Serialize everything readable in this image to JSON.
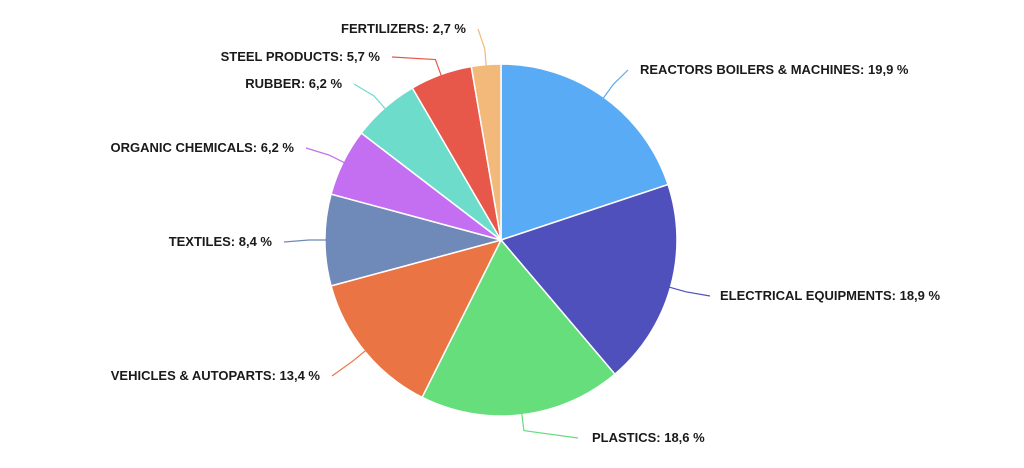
{
  "chart_data": {
    "type": "pie",
    "title": "",
    "slices": [
      {
        "label": "REACTORS BOILERS & MACHINES: 19,9 %",
        "value": 19.9,
        "color": "#5aabf5"
      },
      {
        "label": "ELECTRICAL EQUIPMENTS: 18,9 %",
        "value": 18.9,
        "color": "#5050bd"
      },
      {
        "label": "PLASTICS: 18,6 %",
        "value": 18.6,
        "color": "#66de7c"
      },
      {
        "label": "VEHICLES & AUTOPARTS: 13,4 %",
        "value": 13.4,
        "color": "#eb7444"
      },
      {
        "label": "TEXTILES: 8,4 %",
        "value": 8.4,
        "color": "#6f89b8"
      },
      {
        "label": "ORGANIC CHEMICALS: 6,2 %",
        "value": 6.2,
        "color": "#c46ef2"
      },
      {
        "label": "RUBBER: 6,2 %",
        "value": 6.2,
        "color": "#6ddccb"
      },
      {
        "label": "STEEL PRODUCTS: 5,7 %",
        "value": 5.7,
        "color": "#e8584a"
      },
      {
        "label": "FERTILIZERS: 2,7 %",
        "value": 2.7,
        "color": "#f2b97a"
      }
    ],
    "legend": "none"
  }
}
